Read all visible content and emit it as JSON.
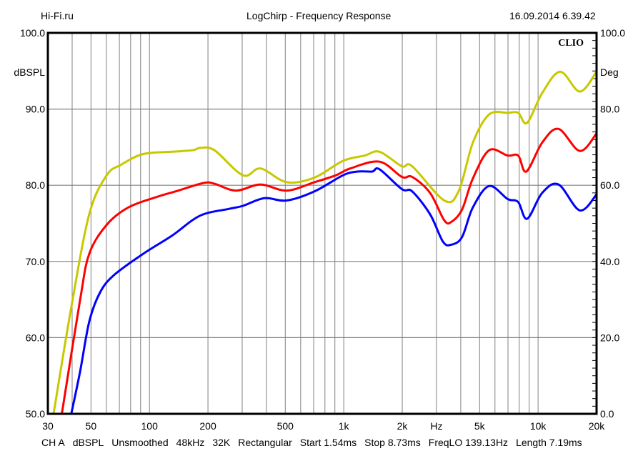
{
  "header": {
    "left": "Hi-Fi.ru",
    "center": "LogChirp - Frequency Response",
    "right": "16.09.2014 6.39.42"
  },
  "footer": [
    "CH A",
    "dBSPL",
    "Unsmoothed",
    "48kHz",
    "32K",
    "Rectangular",
    "Start 1.54ms",
    "Stop 8.73ms",
    "FreqLO 139.13Hz",
    "Length 7.19ms"
  ],
  "chart_data": {
    "type": "line",
    "title": "LogChirp - Frequency Response",
    "brand": "CLIO",
    "xlabel": "Hz",
    "ylabel": "dBSPL",
    "y2label": "Deg",
    "xscale": "log",
    "xlim": [
      30,
      20000
    ],
    "ylim": [
      50,
      100
    ],
    "y2lim": [
      0,
      100
    ],
    "grid": true,
    "x_ticks": [
      {
        "v": 30,
        "label": "30"
      },
      {
        "v": 50,
        "label": "50"
      },
      {
        "v": 100,
        "label": "100"
      },
      {
        "v": 200,
        "label": "200"
      },
      {
        "v": 500,
        "label": "500"
      },
      {
        "v": 1000,
        "label": "1k"
      },
      {
        "v": 2000,
        "label": "2k"
      },
      {
        "v": 5000,
        "label": "5k"
      },
      {
        "v": 10000,
        "label": "10k"
      },
      {
        "v": 20000,
        "label": "20k"
      }
    ],
    "y_ticks": [
      {
        "v": 100,
        "label": "100.0"
      },
      {
        "v": 90,
        "label": "90.0"
      },
      {
        "v": 80,
        "label": "80.0"
      },
      {
        "v": 70,
        "label": "70.0"
      },
      {
        "v": 60,
        "label": "60.0"
      },
      {
        "v": 50,
        "label": "50.0"
      }
    ],
    "y2_ticks": [
      {
        "v": 100,
        "label": "100.0"
      },
      {
        "v": 80,
        "label": "80.0"
      },
      {
        "v": 60,
        "label": "60.0"
      },
      {
        "v": 40,
        "label": "40.0"
      },
      {
        "v": 20,
        "label": "20.0"
      },
      {
        "v": 0,
        "label": "0.0"
      }
    ],
    "series": [
      {
        "name": "yellow",
        "color": "#c8c800",
        "x": [
          32.1,
          39.6,
          49,
          60.2,
          71.5,
          92.8,
          130.8,
          167,
          182,
          216,
          303,
          373,
          508,
          707,
          990,
          1283,
          1527,
          1990,
          2250,
          3290,
          3900,
          4620,
          5600,
          6970,
          7900,
          8780,
          10500,
          13000,
          16400,
          20000
        ],
        "y": [
          50,
          64,
          76.2,
          81.3,
          82.7,
          84.1,
          84.4,
          84.6,
          84.9,
          84.6,
          81.3,
          82.2,
          80.4,
          81,
          83.2,
          83.9,
          84.4,
          82.5,
          82.5,
          78,
          79.2,
          85.6,
          89.3,
          89.5,
          89.5,
          88.2,
          92.1,
          94.9,
          92.3,
          94.9
        ]
      },
      {
        "name": "red",
        "color": "#ff0000",
        "x": [
          35.4,
          43.9,
          49,
          60.2,
          78,
          110,
          136.6,
          190,
          216,
          279,
          373,
          508,
          707,
          910,
          1080,
          1527,
          1990,
          2250,
          2780,
          3290,
          3580,
          4060,
          4620,
          5600,
          6970,
          7900,
          8700,
          10500,
          12750,
          16400,
          20000
        ],
        "y": [
          50,
          64.9,
          71,
          74.8,
          77.1,
          78.5,
          79.2,
          80.3,
          80.2,
          79.3,
          80.1,
          79.3,
          80.4,
          81.3,
          82.2,
          83.1,
          81.1,
          81.1,
          79,
          75.4,
          75.2,
          76.8,
          80.9,
          84.6,
          83.9,
          83.9,
          81.8,
          85.6,
          87.4,
          84.5,
          86.8
        ]
      },
      {
        "name": "blue",
        "color": "#0000ff",
        "x": [
          39.6,
          43.9,
          49,
          55.6,
          65.6,
          92.8,
          130.8,
          182,
          257,
          303,
          390,
          508,
          707,
          990,
          1178,
          1400,
          1527,
          1990,
          2250,
          2780,
          3240,
          3580,
          4060,
          4620,
          5600,
          6970,
          7900,
          8780,
          10500,
          12750,
          16400,
          20000
        ],
        "y": [
          50,
          55.5,
          62.1,
          65.9,
          68.2,
          71,
          73.4,
          76,
          76.9,
          77.3,
          78.3,
          78,
          79.2,
          81.3,
          81.8,
          81.8,
          82.1,
          79.5,
          79.2,
          76.2,
          72.6,
          72.2,
          73.2,
          77.1,
          79.9,
          78.2,
          77.8,
          75.6,
          79,
          80.1,
          76.7,
          78.8
        ]
      }
    ]
  }
}
